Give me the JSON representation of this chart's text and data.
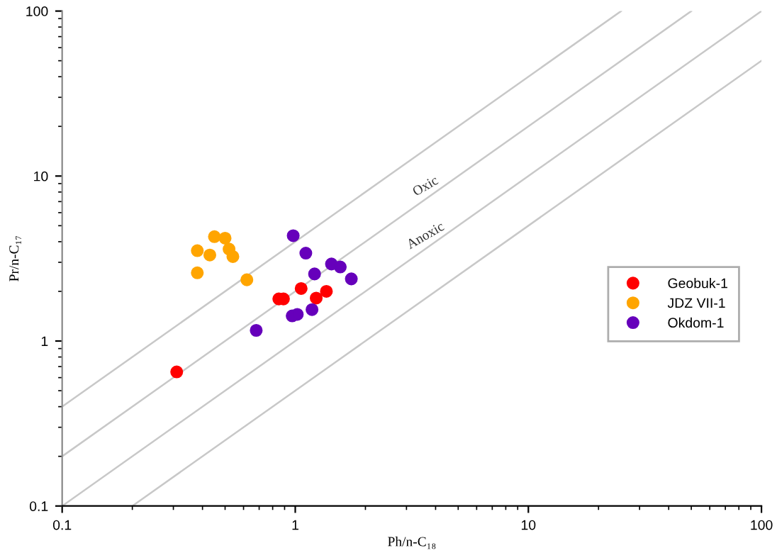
{
  "chart_data": {
    "type": "scatter",
    "xlabel": "Ph/n-C₁₈",
    "ylabel": "Pr/n-C₁₇",
    "log": "xy",
    "xlim": [
      0.1,
      100
    ],
    "ylim": [
      0.1,
      100
    ],
    "xticks": [
      0.1,
      1,
      10,
      100
    ],
    "yticks": [
      0.1,
      1,
      10,
      100
    ],
    "grid": false,
    "legend": "right",
    "marker": "circle",
    "series": [
      {
        "type": "line",
        "marker": "none",
        "color": "#c8c8c8",
        "x": [
          0.1,
          25
        ],
        "values": [
          0.4,
          100
        ]
      },
      {
        "type": "line",
        "marker": "none",
        "color": "#c8c8c8",
        "x": [
          0.1,
          50
        ],
        "values": [
          0.2,
          100
        ]
      },
      {
        "type": "line",
        "marker": "none",
        "color": "#c8c8c8",
        "x": [
          0.1,
          100
        ],
        "values": [
          0.1,
          100
        ]
      },
      {
        "type": "line",
        "marker": "none",
        "color": "#c8c8c8",
        "x": [
          0.2,
          100
        ],
        "values": [
          0.1,
          50
        ]
      },
      {
        "name": "Geobuk-1",
        "color": "#ff0000",
        "x": [
          0.31,
          0.85,
          0.89,
          1.06,
          1.23,
          1.36
        ],
        "values": [
          0.65,
          1.8,
          1.8,
          2.08,
          1.82,
          2.0
        ]
      },
      {
        "name": "JDZ VII-1",
        "color": "#ffa500",
        "x": [
          0.38,
          0.38,
          0.43,
          0.45,
          0.5,
          0.52,
          0.54,
          0.62
        ],
        "values": [
          3.53,
          2.59,
          3.32,
          4.29,
          4.2,
          3.61,
          3.25,
          2.35
        ]
      },
      {
        "name": "Okdom-1",
        "color": "#6600bb",
        "x": [
          0.98,
          1.11,
          1.21,
          1.43,
          1.56,
          1.74,
          0.97,
          1.02,
          1.18,
          0.68
        ],
        "values": [
          4.35,
          3.41,
          2.55,
          2.93,
          2.81,
          2.38,
          1.42,
          1.45,
          1.55,
          1.16
        ]
      }
    ],
    "annotations": [
      "Oxic",
      "Anoxic"
    ]
  }
}
